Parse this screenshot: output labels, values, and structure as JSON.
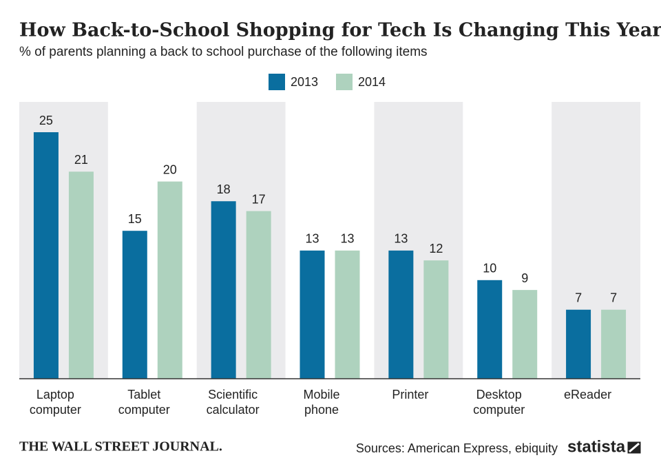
{
  "chart_data": {
    "type": "bar",
    "title": "How Back-to-School Shopping for Tech Is Changing This Year",
    "subtitle": "% of parents planning a back to school purchase of the following items",
    "categories": [
      "Laptop computer",
      "Tablet computer",
      "Scientific calculator",
      "Mobile phone",
      "Printer",
      "Desktop computer",
      "eReader"
    ],
    "series": [
      {
        "name": "2013",
        "color": "#0a6e9f",
        "values": [
          25,
          15,
          18,
          13,
          13,
          10,
          7
        ]
      },
      {
        "name": "2014",
        "color": "#aed2be",
        "values": [
          21,
          20,
          17,
          13,
          12,
          9,
          7
        ]
      }
    ],
    "publisher": "THE WALL STREET JOURNAL.",
    "source": "Sources: American Express, ebiquity",
    "brand": "statista"
  }
}
